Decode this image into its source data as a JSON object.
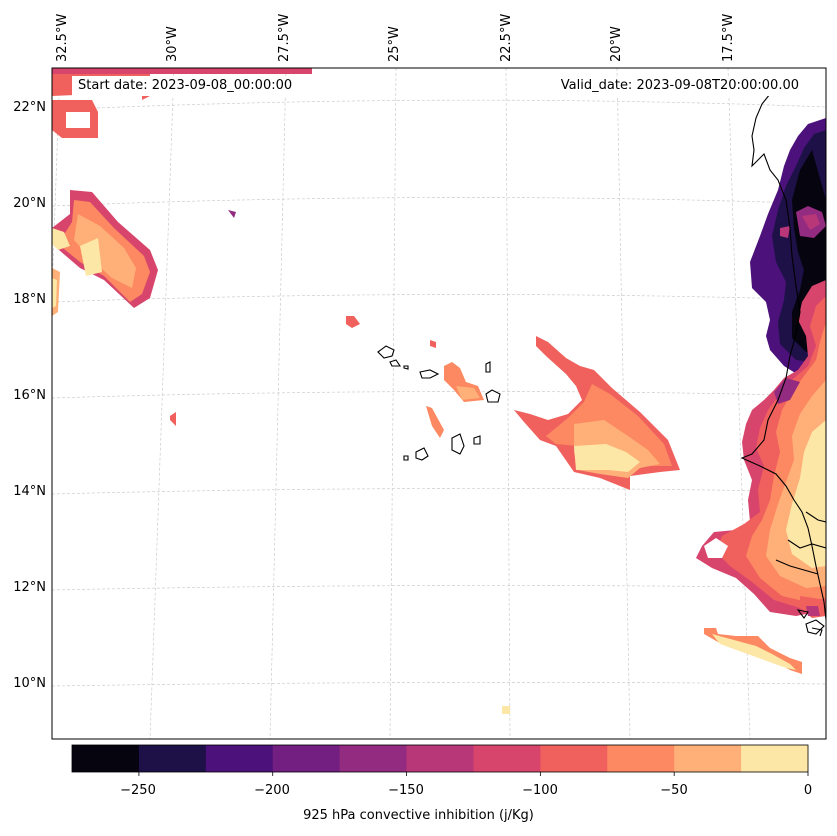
{
  "header": {
    "start_date": "Start date: 2023-09-08_00:00:00",
    "valid_date": "Valid_date: 2023-09-08T20:00:00.00"
  },
  "map": {
    "lon_labels": [
      "32.5°W",
      "30°W",
      "27.5°W",
      "25°W",
      "22.5°W",
      "20°W",
      "17.5°W"
    ],
    "lat_labels": [
      "22°N",
      "20°N",
      "18°N",
      "16°N",
      "14°N",
      "12°N",
      "10°N"
    ]
  },
  "colorbar": {
    "label": "925 hPa convective inhibition (j/Kg)",
    "tick_labels": [
      "−250",
      "−200",
      "−150",
      "−100",
      "−50",
      "0"
    ],
    "levels": [
      -275,
      -250,
      -225,
      -200,
      -175,
      -150,
      -125,
      -100,
      -75,
      -50,
      -25,
      0
    ],
    "colors": [
      "#05040f",
      "#1d1147",
      "#4d117b",
      "#721f81",
      "#932b80",
      "#b73779",
      "#d8456c",
      "#f0605d",
      "#fc8961",
      "#feb078",
      "#fde7a6"
    ]
  },
  "colors": {
    "c0": "#05040f",
    "c1": "#1d1147",
    "c2": "#4d117b",
    "c3": "#721f81",
    "c4": "#932b80",
    "c5": "#b73779",
    "c6": "#d8456c",
    "c7": "#f0605d",
    "c8": "#fc8961",
    "c9": "#feb078",
    "c10": "#fde7a6"
  }
}
